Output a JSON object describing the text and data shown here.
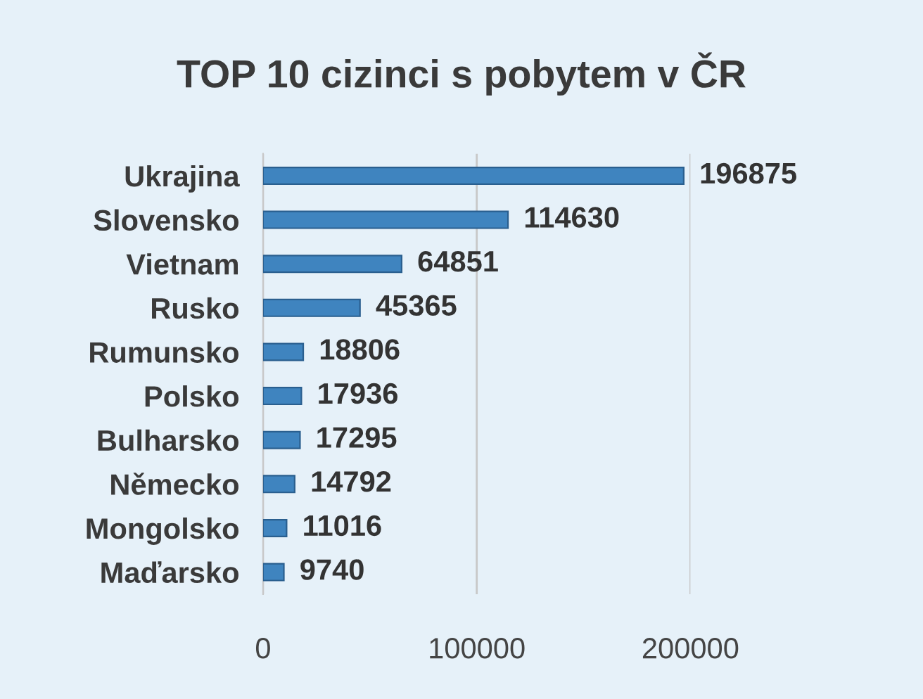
{
  "chart_data": {
    "type": "bar",
    "orientation": "horizontal",
    "title": "TOP 10 cizinci s pobytem v ČR",
    "categories": [
      "Ukrajina",
      "Slovensko",
      "Vietnam",
      "Rusko",
      "Rumunsko",
      "Polsko",
      "Bulharsko",
      "Německo",
      "Mongolsko",
      "Maďarsko"
    ],
    "values": [
      196875,
      114630,
      64851,
      45365,
      18806,
      17936,
      17295,
      14792,
      11016,
      9740
    ],
    "color": "#3f84bf",
    "xlim": [
      0,
      200000
    ],
    "xticks": [
      0,
      100000,
      200000
    ],
    "grid": "x",
    "data_labels": true
  }
}
